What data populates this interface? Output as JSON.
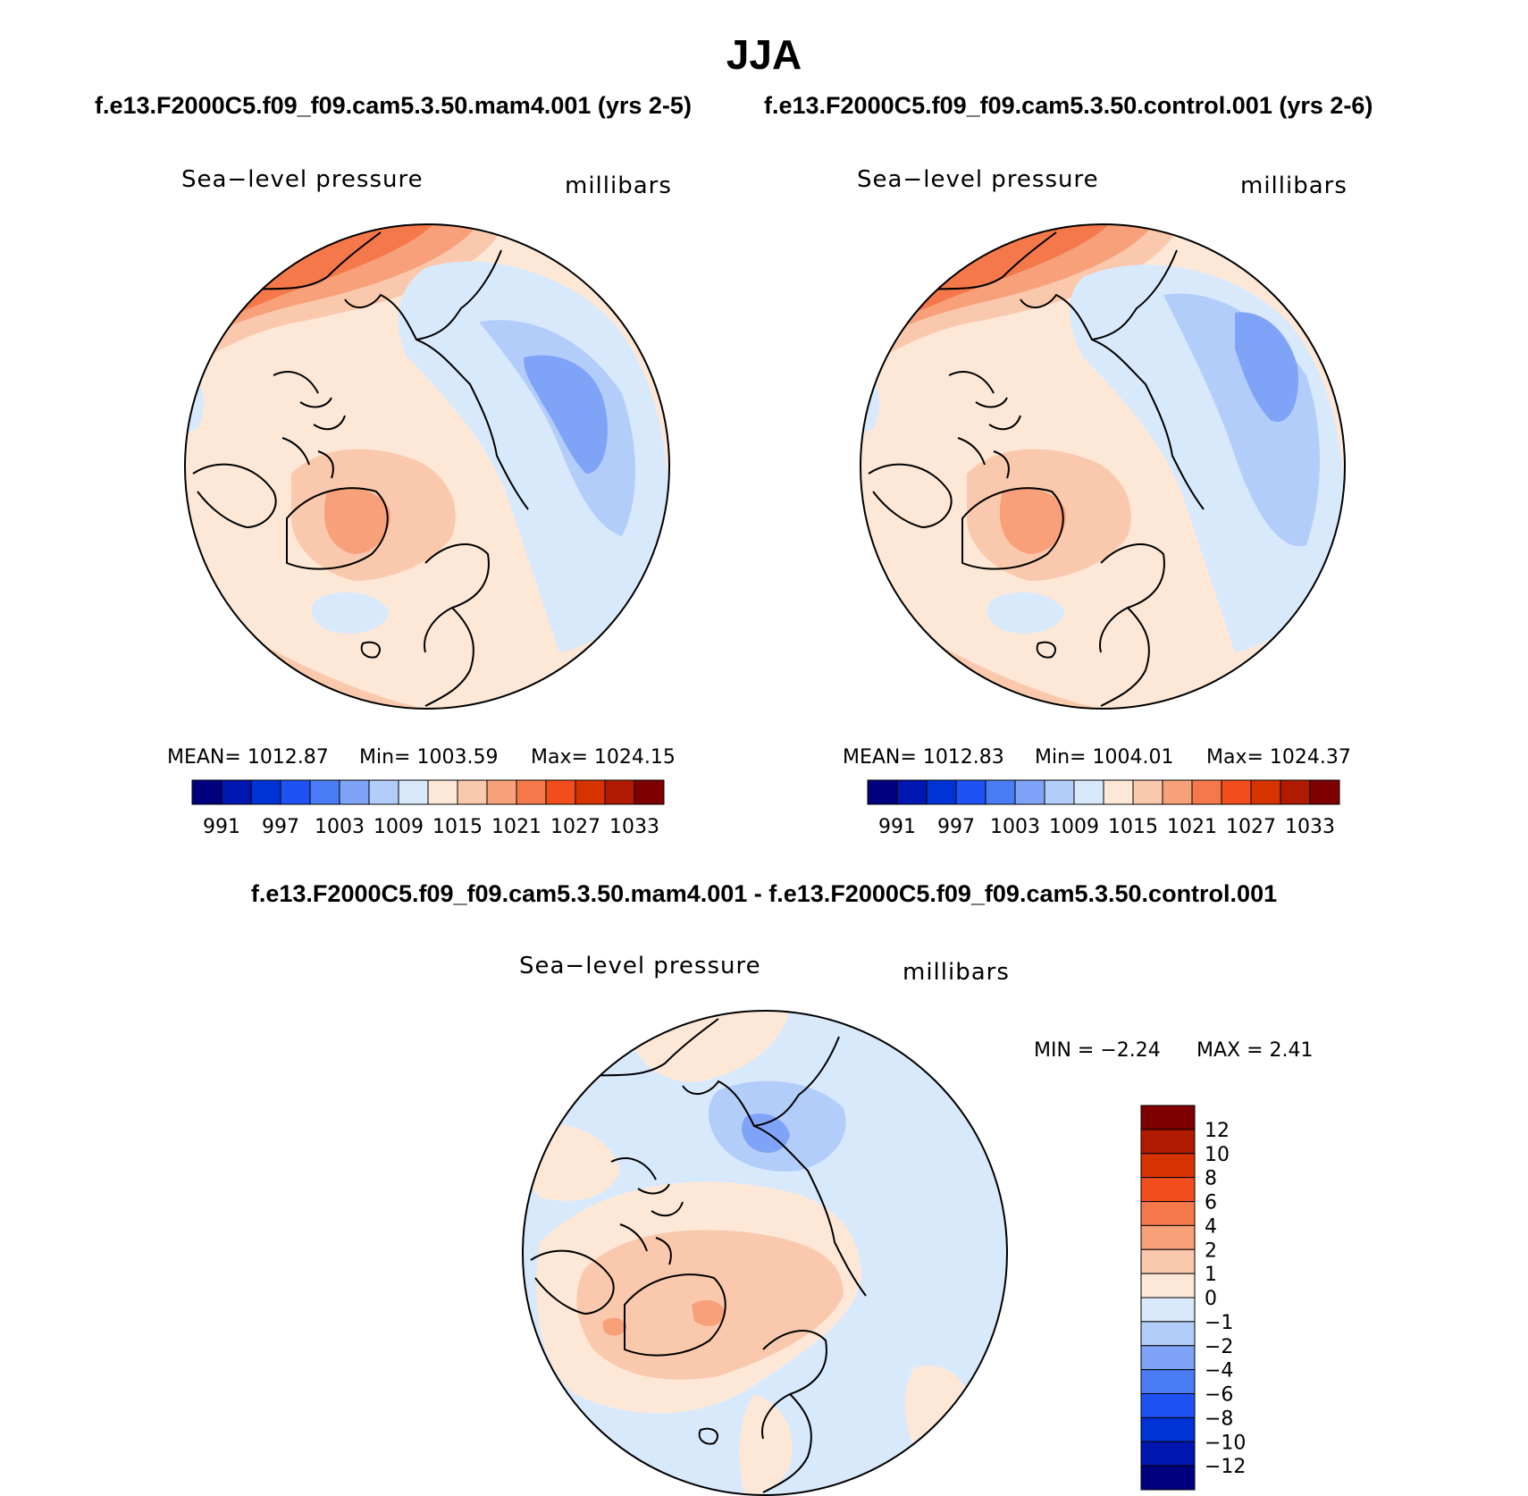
{
  "title": "JJA",
  "case_titles": {
    "left": "f.e13.F2000C5.f09_f09.cam5.3.50.mam4.001 (yrs 2-5)",
    "right": "f.e13.F2000C5.f09_f09.cam5.3.50.control.001 (yrs 2-6)"
  },
  "panels": [
    {
      "variable": "Sea−level pressure",
      "units": "millibars",
      "stats": {
        "mean": "MEAN=  1012.87",
        "min": "Min=  1003.59",
        "max": "Max=  1024.15"
      }
    },
    {
      "variable": "Sea−level pressure",
      "units": "millibars",
      "stats": {
        "mean": "MEAN=  1012.83",
        "min": "Min=  1004.01",
        "max": "Max=  1024.37"
      }
    }
  ],
  "abs_colorbar": {
    "colors": [
      "#00007f",
      "#0016b0",
      "#0033d6",
      "#1f52f5",
      "#4a7df5",
      "#7fa3f7",
      "#b3cdfa",
      "#d9e9fc",
      "#fde8d8",
      "#fac9ad",
      "#f7a07a",
      "#f5784a",
      "#f24d1c",
      "#d63300",
      "#b01a00",
      "#7f0000"
    ],
    "labels": [
      "991",
      "997",
      "1003",
      "1009",
      "1015",
      "1021",
      "1027",
      "1033"
    ]
  },
  "diff": {
    "title": "f.e13.F2000C5.f09_f09.cam5.3.50.mam4.001 - f.e13.F2000C5.f09_f09.cam5.3.50.control.001",
    "variable": "Sea−level pressure",
    "units": "millibars",
    "stats": {
      "min": "MIN =   −2.24",
      "max": "MAX =    2.41"
    }
  },
  "diff_colorbar": {
    "colors": [
      "#7f0000",
      "#b01a00",
      "#d63300",
      "#f24d1c",
      "#f5784a",
      "#f7a07a",
      "#fac9ad",
      "#fde8d8",
      "#d9e9fc",
      "#b3cdfa",
      "#7fa3f7",
      "#4a7df5",
      "#1f52f5",
      "#0033d6",
      "#0016b0",
      "#00007f"
    ],
    "labels": [
      "12",
      "10",
      "8",
      "6",
      "4",
      "2",
      "1",
      "0",
      "−1",
      "−2",
      "−4",
      "−6",
      "−8",
      "−10",
      "−12"
    ]
  }
}
